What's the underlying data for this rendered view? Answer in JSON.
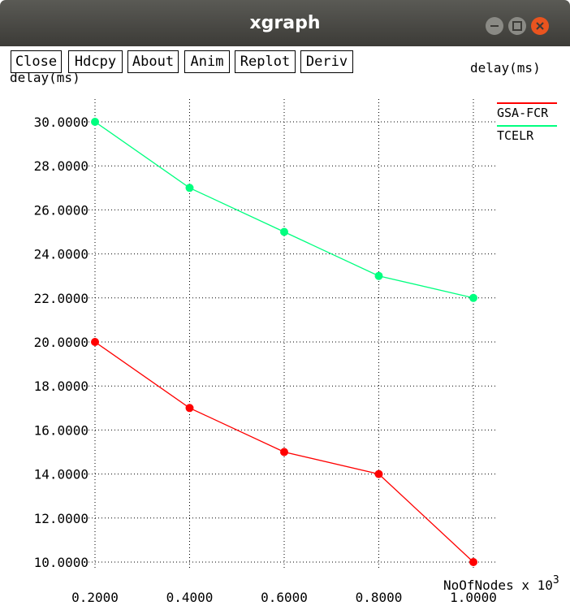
{
  "window": {
    "title": "xgraph"
  },
  "toolbar": {
    "buttons": [
      "Close",
      "Hdcpy",
      "About",
      "Anim",
      "Replot",
      "Deriv"
    ]
  },
  "chart_data": {
    "type": "line",
    "ylabel": "delay(ms)",
    "xlabel": "NoOfNodes x 10",
    "xlabel_exponent": "3",
    "x": [
      0.2,
      0.4,
      0.6,
      0.8,
      1.0
    ],
    "x_tick_labels": [
      "0.2000",
      "0.4000",
      "0.6000",
      "0.8000",
      "1.0000"
    ],
    "y_tick_values": [
      10,
      12,
      14,
      16,
      18,
      20,
      22,
      24,
      26,
      28,
      30
    ],
    "y_tick_labels": [
      "10.0000",
      "12.0000",
      "14.0000",
      "16.0000",
      "18.0000",
      "20.0000",
      "22.0000",
      "24.0000",
      "26.0000",
      "28.0000",
      "30.0000"
    ],
    "xlim": [
      0.2,
      1.0
    ],
    "ylim": [
      10,
      30
    ],
    "grid": true,
    "legend_position": "top-right",
    "series": [
      {
        "name": "GSA-FCR",
        "color": "#ff0000",
        "values": [
          20,
          17,
          15,
          14,
          10
        ]
      },
      {
        "name": "TCELR",
        "color": "#00ff7f",
        "values": [
          30,
          27,
          25,
          23,
          22
        ]
      }
    ]
  }
}
